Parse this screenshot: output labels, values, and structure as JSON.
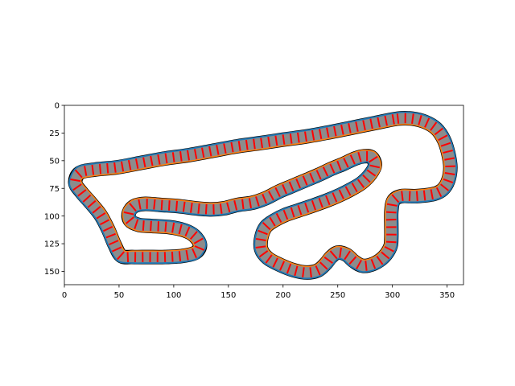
{
  "chart_data": {
    "type": "line",
    "title": "",
    "xlabel": "",
    "ylabel": "",
    "xlim": [
      0,
      365
    ],
    "ylim": [
      162,
      0
    ],
    "y_inverted": true,
    "grid": false,
    "legend": "none",
    "xticks": [
      0,
      50,
      100,
      150,
      200,
      250,
      300,
      350
    ],
    "yticks": [
      0,
      25,
      50,
      75,
      100,
      125,
      150
    ],
    "xtick_labels": [
      "0",
      "50",
      "100",
      "150",
      "200",
      "250",
      "300",
      "350"
    ],
    "ytick_labels": [
      "0",
      "25",
      "50",
      "75",
      "100",
      "125",
      "150"
    ],
    "colors": {
      "track_fill": "#8c8c8c",
      "track_border": "#000000",
      "outer_line": "#1f77b4",
      "inner_line": "#ff7f0e",
      "dash": "#ff0000"
    },
    "track_width": 11,
    "series": [
      {
        "values": [
          [
            305,
            12
          ],
          [
            318,
            12
          ],
          [
            330,
            15
          ],
          [
            340,
            21
          ],
          [
            347,
            31
          ],
          [
            351,
            43
          ],
          [
            353,
            56
          ],
          [
            351,
            68
          ],
          [
            346,
            76
          ],
          [
            338,
            80
          ],
          [
            322,
            82
          ],
          [
            308,
            82
          ],
          [
            301,
            86
          ],
          [
            299,
            96
          ],
          [
            299,
            108
          ],
          [
            299,
            120
          ],
          [
            298,
            128
          ],
          [
            292,
            137
          ],
          [
            283,
            143
          ],
          [
            273,
            145
          ],
          [
            265,
            141
          ],
          [
            258,
            135
          ],
          [
            250,
            133
          ],
          [
            244,
            137
          ],
          [
            239,
            143
          ],
          [
            232,
            149
          ],
          [
            222,
            151
          ],
          [
            210,
            149
          ],
          [
            197,
            144
          ],
          [
            186,
            138
          ],
          [
            180,
            130
          ],
          [
            180,
            120
          ],
          [
            184,
            110
          ],
          [
            192,
            104
          ],
          [
            202,
            99
          ],
          [
            214,
            95
          ],
          [
            226,
            91
          ],
          [
            240,
            86
          ],
          [
            252,
            81
          ],
          [
            262,
            76
          ],
          [
            272,
            70
          ],
          [
            280,
            62
          ],
          [
            284,
            54
          ],
          [
            281,
            47
          ],
          [
            274,
            46
          ],
          [
            266,
            48
          ],
          [
            255,
            53
          ],
          [
            245,
            57
          ],
          [
            232,
            63
          ],
          [
            220,
            68
          ],
          [
            208,
            73
          ],
          [
            196,
            78
          ],
          [
            184,
            84
          ],
          [
            172,
            88
          ],
          [
            158,
            90
          ],
          [
            146,
            93
          ],
          [
            134,
            94
          ],
          [
            120,
            93
          ],
          [
            104,
            91
          ],
          [
            88,
            90
          ],
          [
            74,
            89
          ],
          [
            64,
            91
          ],
          [
            59,
            97
          ],
          [
            60,
            104
          ],
          [
            68,
            108
          ],
          [
            80,
            109
          ],
          [
            96,
            110
          ],
          [
            110,
            113
          ],
          [
            119,
            118
          ],
          [
            124,
            126
          ],
          [
            120,
            133
          ],
          [
            108,
            136
          ],
          [
            92,
            137
          ],
          [
            76,
            137
          ],
          [
            62,
            137
          ],
          [
            52,
            136
          ],
          [
            46,
            126
          ],
          [
            40,
            112
          ],
          [
            33,
            99
          ],
          [
            24,
            88
          ],
          [
            16,
            79
          ],
          [
            10,
            70
          ],
          [
            14,
            61
          ],
          [
            28,
            58
          ],
          [
            48,
            56
          ],
          [
            70,
            52
          ],
          [
            92,
            48
          ],
          [
            114,
            45
          ],
          [
            136,
            41
          ],
          [
            158,
            37
          ],
          [
            180,
            34
          ],
          [
            200,
            31
          ],
          [
            222,
            28
          ],
          [
            244,
            24
          ],
          [
            264,
            20
          ],
          [
            284,
            16
          ],
          [
            305,
            12
          ]
        ]
      }
    ]
  }
}
